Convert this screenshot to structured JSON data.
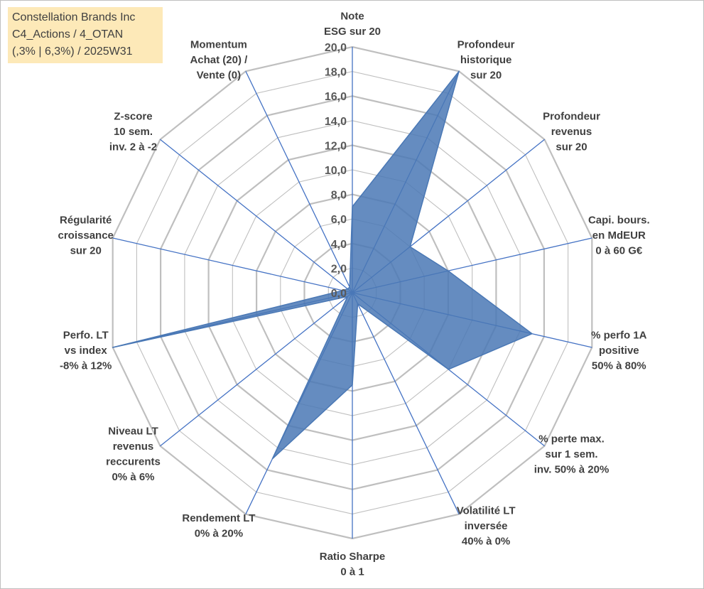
{
  "header": {
    "lines": [
      "Constellation Brands Inc",
      "C4_Actions / 4_OTAN",
      "(,3% | 6,3%) / 2025W31"
    ]
  },
  "colors": {
    "grid": "#bfbfbf",
    "spoke": "#4472c4",
    "fill": "#4a78b5",
    "text": "#404040"
  },
  "chart_data": {
    "type": "radar",
    "rmax": 20,
    "tick_values": [
      0,
      2,
      4,
      6,
      8,
      10,
      12,
      14,
      16,
      18,
      20
    ],
    "tick_labels": [
      "0,0",
      "2,0",
      "4,0",
      "6,0",
      "8,0",
      "10,0",
      "12,0",
      "14,0",
      "16,0",
      "18,0",
      "20,0"
    ],
    "axes": [
      {
        "label": [
          "Note",
          "ESG sur 20"
        ],
        "value": 7
      },
      {
        "label": [
          "Profondeur",
          "historique",
          "sur 20"
        ],
        "value": 20
      },
      {
        "label": [
          "Profondeur",
          "revenus",
          "sur 20"
        ],
        "value": 6
      },
      {
        "label": [
          "Capi. bours.",
          "en MdEUR",
          "0 à 60 G€"
        ],
        "value": 8
      },
      {
        "label": [
          "% perfo 1A",
          "positive",
          "50% à 80%"
        ],
        "value": 15
      },
      {
        "label": [
          "% perte max.",
          "sur 1 sem.",
          "inv. 50% à 20%"
        ],
        "value": 10
      },
      {
        "label": [
          "Volatilité LT",
          "inversée",
          "40% à 0%"
        ],
        "value": 1
      },
      {
        "label": [
          "Ratio Sharpe",
          "0 à 1"
        ],
        "value": 7.5
      },
      {
        "label": [
          "Rendement LT",
          "0% à 20%"
        ],
        "value": 15
      },
      {
        "label": [
          "Niveau LT",
          "revenus",
          "reccurents",
          "0% à 6%"
        ],
        "value": 0.5
      },
      {
        "label": [
          "Perfo. LT",
          "vs index",
          "-8% à 12%"
        ],
        "value": 20
      },
      {
        "label": [
          "Régularité",
          "croissance",
          "sur 20"
        ],
        "value": 0.8
      },
      {
        "label": [
          "Z-score",
          "10 sem.",
          "inv. 2 à -2"
        ],
        "value": 0.5
      },
      {
        "label": [
          "Momentum",
          "Achat (20) /",
          "Vente (0)"
        ],
        "value": 0.5
      }
    ]
  }
}
